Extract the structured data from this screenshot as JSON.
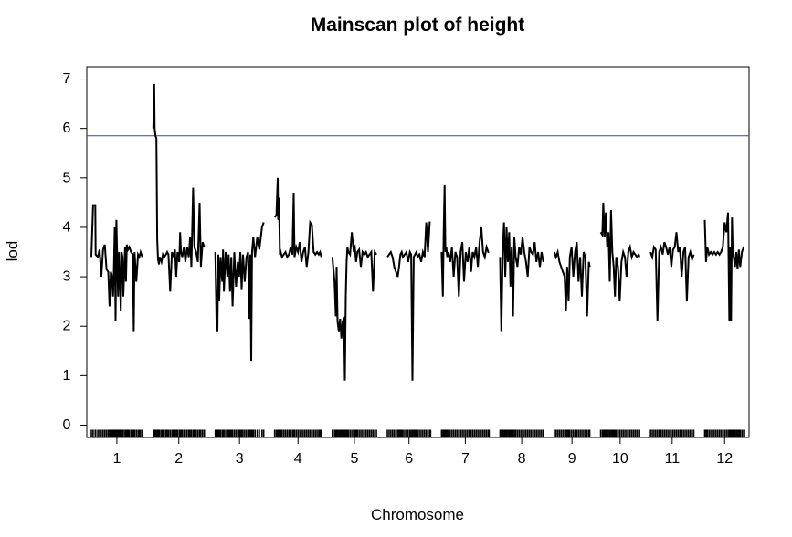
{
  "chart_data": {
    "type": "line",
    "title": "Mainscan plot of height",
    "xlabel": "Chromosome",
    "ylabel": "lod",
    "ylim": [
      -0.25,
      7.25
    ],
    "y_ticks": [
      0,
      1,
      2,
      3,
      4,
      5,
      6,
      7
    ],
    "threshold": {
      "value": 5.85,
      "color": "#3b3bbd"
    },
    "line_color": "#000000",
    "rug": true,
    "grid": false,
    "legend": "none",
    "chromosomes": [
      {
        "label": "1",
        "length": 118,
        "x": [
          0,
          4,
          9,
          10,
          15,
          19,
          23,
          27,
          31,
          35,
          39,
          42,
          45,
          47,
          50,
          52,
          54,
          56,
          58,
          60,
          62,
          64,
          66,
          68,
          70,
          72,
          74,
          78,
          80,
          82,
          85,
          88,
          92,
          96,
          98,
          100,
          104,
          108,
          111,
          114,
          118
        ],
        "y": [
          3.4,
          4.45,
          4.45,
          3.45,
          3.4,
          3.55,
          3.0,
          3.55,
          3.65,
          3.15,
          3.1,
          2.4,
          3.1,
          3.05,
          2.6,
          3.1,
          4.0,
          2.1,
          4.15,
          3.3,
          2.6,
          3.5,
          3.0,
          2.3,
          3.5,
          3.4,
          2.6,
          3.6,
          2.9,
          3.65,
          3.55,
          3.6,
          3.5,
          3.45,
          1.9,
          3.5,
          2.9,
          3.45,
          3.4,
          3.5,
          3.4
        ]
      },
      {
        "label": "2",
        "length": 118,
        "x": [
          0,
          2,
          3,
          5,
          7,
          8,
          9,
          11,
          13,
          15,
          19,
          22,
          25,
          29,
          32,
          35,
          39,
          43,
          46,
          50,
          53,
          56,
          60,
          62,
          64,
          67,
          71,
          74,
          78,
          82,
          85,
          88,
          92,
          95,
          99,
          103,
          107,
          110,
          114,
          118
        ],
        "y": [
          6.0,
          6.9,
          6.0,
          5.85,
          5.8,
          4.9,
          3.75,
          3.35,
          3.25,
          3.4,
          3.3,
          3.45,
          3.4,
          3.45,
          3.5,
          3.45,
          2.7,
          3.5,
          3.4,
          3.55,
          3.0,
          3.5,
          3.3,
          3.9,
          3.5,
          3.4,
          3.6,
          3.3,
          3.6,
          3.4,
          3.8,
          3.2,
          4.8,
          3.6,
          3.5,
          3.3,
          4.5,
          3.2,
          3.7,
          3.6
        ]
      },
      {
        "label": "3",
        "length": 112,
        "x": [
          0,
          3,
          5,
          7,
          9,
          12,
          16,
          18,
          20,
          24,
          28,
          31,
          34,
          37,
          40,
          44,
          48,
          52,
          55,
          58,
          61,
          64,
          68,
          72,
          76,
          78,
          81,
          83,
          85,
          88,
          92,
          97,
          102,
          108,
          112
        ],
        "y": [
          3.5,
          2.0,
          1.9,
          3.45,
          2.5,
          3.4,
          2.9,
          3.55,
          2.7,
          3.5,
          3.0,
          3.45,
          2.7,
          3.4,
          2.4,
          3.5,
          2.8,
          3.3,
          3.0,
          3.5,
          2.75,
          3.45,
          2.9,
          3.4,
          3.5,
          2.15,
          3.45,
          1.3,
          3.5,
          3.8,
          3.4,
          3.8,
          3.55,
          4.0,
          4.1
        ]
      },
      {
        "label": "4",
        "length": 108,
        "x": [
          0,
          4,
          7,
          8,
          10,
          12,
          14,
          17,
          21,
          25,
          29,
          33,
          37,
          41,
          44,
          46,
          50,
          54,
          58,
          62,
          66,
          70,
          74,
          78,
          82,
          86,
          90,
          94,
          98,
          102,
          105,
          108
        ],
        "y": [
          4.2,
          4.25,
          5.0,
          4.15,
          4.6,
          3.45,
          3.5,
          3.4,
          3.45,
          3.5,
          3.4,
          3.45,
          3.6,
          3.45,
          4.7,
          3.4,
          3.6,
          3.5,
          3.7,
          3.3,
          3.5,
          3.6,
          3.2,
          3.5,
          4.1,
          4.05,
          3.5,
          3.45,
          3.5,
          3.45,
          3.5,
          3.4
        ]
      },
      {
        "label": "5",
        "length": 102,
        "x": [
          0,
          5,
          8,
          10,
          12,
          15,
          18,
          21,
          24,
          27,
          29,
          31,
          33,
          35,
          37,
          41,
          45,
          49,
          52,
          55,
          58,
          62,
          66,
          70,
          74,
          78,
          82,
          86,
          90,
          94,
          98,
          102
        ],
        "y": [
          3.4,
          2.9,
          2.2,
          3.2,
          2.1,
          1.9,
          2.15,
          1.75,
          2.1,
          2.15,
          0.9,
          2.6,
          3.3,
          3.6,
          3.5,
          3.45,
          3.9,
          3.55,
          3.6,
          3.3,
          3.5,
          3.55,
          3.2,
          3.5,
          3.45,
          3.5,
          3.4,
          3.45,
          3.5,
          2.7,
          3.5,
          3.45
        ]
      },
      {
        "label": "6",
        "length": 100,
        "x": [
          0,
          4,
          8,
          12,
          16,
          20,
          24,
          27,
          30,
          33,
          36,
          40,
          44,
          48,
          52,
          55,
          58,
          61,
          64,
          67,
          70,
          74,
          78,
          82,
          86,
          90,
          94,
          98,
          100
        ],
        "y": [
          3.4,
          3.45,
          3.5,
          3.4,
          3.2,
          3.1,
          3.0,
          3.2,
          3.45,
          3.5,
          3.4,
          3.45,
          3.5,
          3.3,
          3.5,
          3.45,
          0.9,
          3.4,
          3.45,
          3.5,
          3.4,
          3.45,
          3.3,
          3.5,
          3.4,
          4.1,
          3.5,
          4.1,
          4.1
        ]
      },
      {
        "label": "7",
        "length": 110,
        "x": [
          0,
          3,
          5,
          7,
          9,
          11,
          13,
          16,
          20,
          24,
          28,
          32,
          36,
          40,
          44,
          48,
          52,
          56,
          60,
          64,
          68,
          72,
          76,
          80,
          84,
          88,
          92,
          96,
          100,
          104,
          108,
          110
        ],
        "y": [
          3.5,
          2.6,
          3.9,
          4.85,
          3.5,
          3.6,
          3.4,
          3.5,
          3.3,
          3.6,
          3.0,
          3.5,
          3.4,
          2.6,
          3.5,
          3.7,
          2.9,
          3.5,
          3.3,
          3.6,
          3.1,
          3.5,
          3.4,
          3.6,
          3.2,
          3.7,
          4.0,
          3.5,
          3.4,
          3.6,
          3.5,
          3.5
        ]
      },
      {
        "label": "8",
        "length": 100,
        "x": [
          0,
          3,
          6,
          9,
          12,
          15,
          18,
          21,
          24,
          27,
          30,
          33,
          36,
          40,
          44,
          48,
          52,
          56,
          60,
          64,
          68,
          72,
          76,
          80,
          84,
          88,
          92,
          96,
          100
        ],
        "y": [
          3.4,
          1.9,
          3.5,
          4.1,
          3.0,
          4.0,
          3.3,
          3.9,
          2.8,
          3.6,
          2.2,
          3.8,
          3.4,
          3.2,
          3.6,
          3.45,
          3.8,
          3.5,
          3.3,
          3.0,
          3.6,
          3.5,
          3.45,
          3.7,
          3.3,
          3.5,
          3.2,
          3.5,
          3.3
        ]
      },
      {
        "label": "9",
        "length": 82,
        "x": [
          0,
          4,
          8,
          12,
          16,
          20,
          24,
          27,
          30,
          33,
          36,
          40,
          44,
          48,
          52,
          56,
          60,
          64,
          68,
          72,
          76,
          80,
          82
        ],
        "y": [
          3.5,
          3.4,
          3.5,
          3.3,
          3.2,
          3.1,
          3.0,
          2.3,
          3.2,
          2.5,
          3.4,
          3.6,
          3.0,
          3.5,
          3.7,
          2.9,
          3.4,
          2.6,
          3.5,
          3.4,
          2.2,
          3.3,
          3.2
        ]
      },
      {
        "label": "10",
        "length": 90,
        "x": [
          0,
          4,
          6,
          9,
          12,
          15,
          18,
          21,
          24,
          27,
          30,
          33,
          36,
          40,
          44,
          48,
          52,
          56,
          60,
          64,
          68,
          72,
          76,
          80,
          84,
          88,
          90
        ],
        "y": [
          3.9,
          3.85,
          4.5,
          3.8,
          4.3,
          3.6,
          3.9,
          2.9,
          4.35,
          3.5,
          3.2,
          2.6,
          3.4,
          3.2,
          2.5,
          3.3,
          3.5,
          3.4,
          3.0,
          3.5,
          3.6,
          3.4,
          3.5,
          3.45,
          3.4,
          3.45,
          3.4
        ]
      },
      {
        "label": "11",
        "length": 100,
        "x": [
          0,
          4,
          8,
          12,
          16,
          20,
          24,
          28,
          32,
          36,
          40,
          44,
          48,
          52,
          56,
          60,
          64,
          68,
          72,
          76,
          80,
          84,
          88,
          92,
          96,
          100
        ],
        "y": [
          3.5,
          3.4,
          3.6,
          3.55,
          2.1,
          3.5,
          3.6,
          3.45,
          3.7,
          3.6,
          3.45,
          3.6,
          3.2,
          3.55,
          3.6,
          3.9,
          3.5,
          3.6,
          3.0,
          3.5,
          3.6,
          2.5,
          3.4,
          3.5,
          3.35,
          3.45
        ]
      },
      {
        "label": "12",
        "length": 92,
        "x": [
          0,
          3,
          6,
          10,
          14,
          18,
          22,
          26,
          30,
          34,
          38,
          42,
          46,
          50,
          54,
          57,
          59,
          61,
          63,
          65,
          67,
          70,
          73,
          76,
          79,
          82,
          86,
          90,
          92
        ],
        "y": [
          4.15,
          3.3,
          3.6,
          3.45,
          3.5,
          3.45,
          3.5,
          3.45,
          3.5,
          3.45,
          3.5,
          3.6,
          4.1,
          3.9,
          4.3,
          2.1,
          3.6,
          2.1,
          4.2,
          3.5,
          3.4,
          3.2,
          3.5,
          3.15,
          3.55,
          3.2,
          3.5,
          3.6,
          3.6
        ]
      }
    ]
  }
}
